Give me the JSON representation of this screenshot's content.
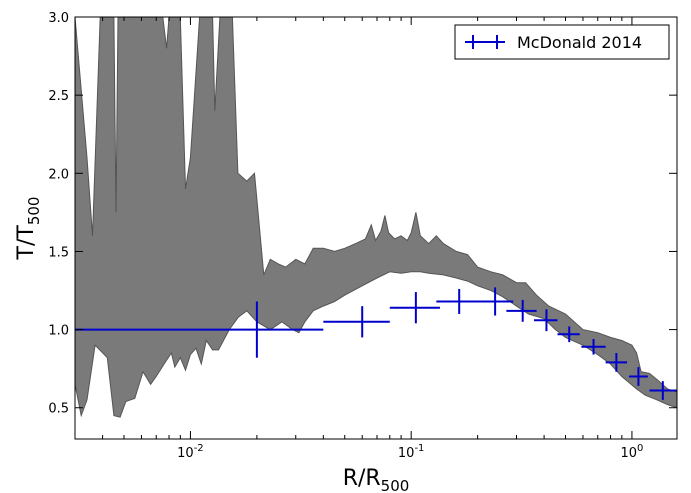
{
  "chart_data": {
    "type": "line",
    "xlabel": {
      "main": "R/R",
      "sub": "500"
    },
    "ylabel": {
      "main": "T/T",
      "sub": "500"
    },
    "x_scale": "log",
    "xlim": [
      0.003,
      1.6
    ],
    "ylim": [
      0.3,
      3.0
    ],
    "grid": false,
    "legend_position": "top-right",
    "y_ticks": [
      {
        "value": 0.5,
        "label": "0.5"
      },
      {
        "value": 1.0,
        "label": "1.0"
      },
      {
        "value": 1.5,
        "label": "1.5"
      },
      {
        "value": 2.0,
        "label": "2.0"
      },
      {
        "value": 2.5,
        "label": "2.5"
      },
      {
        "value": 3.0,
        "label": "3.0"
      }
    ],
    "x_ticks": [
      {
        "value": 0.01,
        "base": "10",
        "exp": "-2"
      },
      {
        "value": 0.1,
        "base": "10",
        "exp": "-1"
      },
      {
        "value": 1.0,
        "base": "10",
        "exp": "0"
      }
    ],
    "band": {
      "color": "#7a7a7a",
      "edge_color": "#555555",
      "upper": [
        [
          0.003,
          3.0
        ],
        [
          0.0034,
          2.1
        ],
        [
          0.0036,
          1.6
        ],
        [
          0.0039,
          3.0
        ],
        [
          0.0045,
          3.0
        ],
        [
          0.0046,
          1.75
        ],
        [
          0.0047,
          3.0
        ],
        [
          0.0075,
          3.0
        ],
        [
          0.0078,
          2.8
        ],
        [
          0.008,
          3.0
        ],
        [
          0.009,
          3.0
        ],
        [
          0.0095,
          1.9
        ],
        [
          0.01,
          2.1
        ],
        [
          0.011,
          3.0
        ],
        [
          0.0126,
          3.0
        ],
        [
          0.0129,
          2.4
        ],
        [
          0.0136,
          3.0
        ],
        [
          0.0155,
          3.0
        ],
        [
          0.0164,
          2.0
        ],
        [
          0.018,
          1.95
        ],
        [
          0.0195,
          2.0
        ],
        [
          0.0215,
          1.35
        ],
        [
          0.023,
          1.45
        ],
        [
          0.025,
          1.42
        ],
        [
          0.027,
          1.4
        ],
        [
          0.03,
          1.45
        ],
        [
          0.033,
          1.42
        ],
        [
          0.036,
          1.52
        ],
        [
          0.04,
          1.52
        ],
        [
          0.045,
          1.5
        ],
        [
          0.05,
          1.52
        ],
        [
          0.056,
          1.55
        ],
        [
          0.062,
          1.58
        ],
        [
          0.066,
          1.67
        ],
        [
          0.069,
          1.57
        ],
        [
          0.073,
          1.63
        ],
        [
          0.076,
          1.73
        ],
        [
          0.079,
          1.62
        ],
        [
          0.084,
          1.58
        ],
        [
          0.09,
          1.6
        ],
        [
          0.096,
          1.57
        ],
        [
          0.1,
          1.62
        ],
        [
          0.105,
          1.75
        ],
        [
          0.11,
          1.6
        ],
        [
          0.12,
          1.55
        ],
        [
          0.13,
          1.6
        ],
        [
          0.14,
          1.55
        ],
        [
          0.16,
          1.5
        ],
        [
          0.18,
          1.48
        ],
        [
          0.2,
          1.4
        ],
        [
          0.23,
          1.37
        ],
        [
          0.26,
          1.35
        ],
        [
          0.3,
          1.3
        ],
        [
          0.33,
          1.3
        ],
        [
          0.37,
          1.22
        ],
        [
          0.42,
          1.15
        ],
        [
          0.5,
          1.1
        ],
        [
          0.6,
          1.0
        ],
        [
          0.7,
          0.98
        ],
        [
          0.8,
          0.95
        ],
        [
          0.9,
          0.93
        ],
        [
          1.0,
          0.9
        ],
        [
          1.05,
          0.85
        ],
        [
          1.1,
          0.73
        ],
        [
          1.2,
          0.72
        ],
        [
          1.3,
          0.68
        ],
        [
          1.45,
          0.62
        ],
        [
          1.6,
          0.6
        ]
      ],
      "lower": [
        [
          1.6,
          0.5
        ],
        [
          1.45,
          0.52
        ],
        [
          1.3,
          0.55
        ],
        [
          1.15,
          0.58
        ],
        [
          1.05,
          0.62
        ],
        [
          0.9,
          0.7
        ],
        [
          0.8,
          0.78
        ],
        [
          0.7,
          0.84
        ],
        [
          0.6,
          0.9
        ],
        [
          0.5,
          0.95
        ],
        [
          0.45,
          1.0
        ],
        [
          0.4,
          1.07
        ],
        [
          0.34,
          1.1
        ],
        [
          0.3,
          1.15
        ],
        [
          0.26,
          1.21
        ],
        [
          0.23,
          1.25
        ],
        [
          0.2,
          1.28
        ],
        [
          0.18,
          1.31
        ],
        [
          0.16,
          1.33
        ],
        [
          0.14,
          1.35
        ],
        [
          0.12,
          1.36
        ],
        [
          0.11,
          1.37
        ],
        [
          0.1,
          1.37
        ],
        [
          0.09,
          1.36
        ],
        [
          0.08,
          1.37
        ],
        [
          0.07,
          1.33
        ],
        [
          0.06,
          1.28
        ],
        [
          0.05,
          1.22
        ],
        [
          0.045,
          1.18
        ],
        [
          0.04,
          1.15
        ],
        [
          0.036,
          1.12
        ],
        [
          0.033,
          1.05
        ],
        [
          0.031,
          0.98
        ],
        [
          0.029,
          1.0
        ],
        [
          0.026,
          1.05
        ],
        [
          0.023,
          1.0
        ],
        [
          0.02,
          1.05
        ],
        [
          0.018,
          1.12
        ],
        [
          0.0165,
          1.08
        ],
        [
          0.015,
          1.0
        ],
        [
          0.0134,
          0.87
        ],
        [
          0.0126,
          0.87
        ],
        [
          0.0118,
          0.93
        ],
        [
          0.0112,
          0.78
        ],
        [
          0.0106,
          0.88
        ],
        [
          0.01,
          0.84
        ],
        [
          0.0095,
          0.74
        ],
        [
          0.009,
          0.82
        ],
        [
          0.0085,
          0.76
        ],
        [
          0.0082,
          0.85
        ],
        [
          0.0076,
          0.78
        ],
        [
          0.007,
          0.7
        ],
        [
          0.0066,
          0.65
        ],
        [
          0.0061,
          0.73
        ],
        [
          0.0056,
          0.56
        ],
        [
          0.0051,
          0.54
        ],
        [
          0.0048,
          0.44
        ],
        [
          0.0045,
          0.45
        ],
        [
          0.0042,
          0.82
        ],
        [
          0.0037,
          0.9
        ],
        [
          0.0034,
          0.55
        ],
        [
          0.0032,
          0.45
        ],
        [
          0.003,
          0.65
        ]
      ]
    },
    "series": [
      {
        "name": "McDonald 2014",
        "color": "#0000cc",
        "points": [
          {
            "x": 0.02,
            "y": 1.0,
            "xerr": [
              0.003,
              0.04
            ],
            "yerr": 0.18
          },
          {
            "x": 0.06,
            "y": 1.05,
            "xerr": [
              0.04,
              0.08
            ],
            "yerr": 0.1
          },
          {
            "x": 0.105,
            "y": 1.14,
            "xerr": [
              0.08,
              0.135
            ],
            "yerr": 0.1
          },
          {
            "x": 0.165,
            "y": 1.18,
            "xerr": [
              0.13,
              0.205
            ],
            "yerr": 0.08
          },
          {
            "x": 0.24,
            "y": 1.18,
            "xerr": [
              0.19,
              0.29
            ],
            "yerr": 0.09
          },
          {
            "x": 0.32,
            "y": 1.12,
            "xerr": [
              0.27,
              0.37
            ],
            "yerr": 0.07
          },
          {
            "x": 0.41,
            "y": 1.06,
            "xerr": [
              0.36,
              0.46
            ],
            "yerr": 0.07
          },
          {
            "x": 0.52,
            "y": 0.97,
            "xerr": [
              0.46,
              0.58
            ],
            "yerr": 0.05
          },
          {
            "x": 0.67,
            "y": 0.89,
            "xerr": [
              0.59,
              0.76
            ],
            "yerr": 0.05
          },
          {
            "x": 0.85,
            "y": 0.79,
            "xerr": [
              0.76,
              0.95
            ],
            "yerr": 0.06
          },
          {
            "x": 1.07,
            "y": 0.7,
            "xerr": [
              0.97,
              1.18
            ],
            "yerr": 0.06
          },
          {
            "x": 1.38,
            "y": 0.61,
            "xerr": [
              1.2,
              1.6
            ],
            "yerr": 0.06
          }
        ]
      }
    ]
  }
}
